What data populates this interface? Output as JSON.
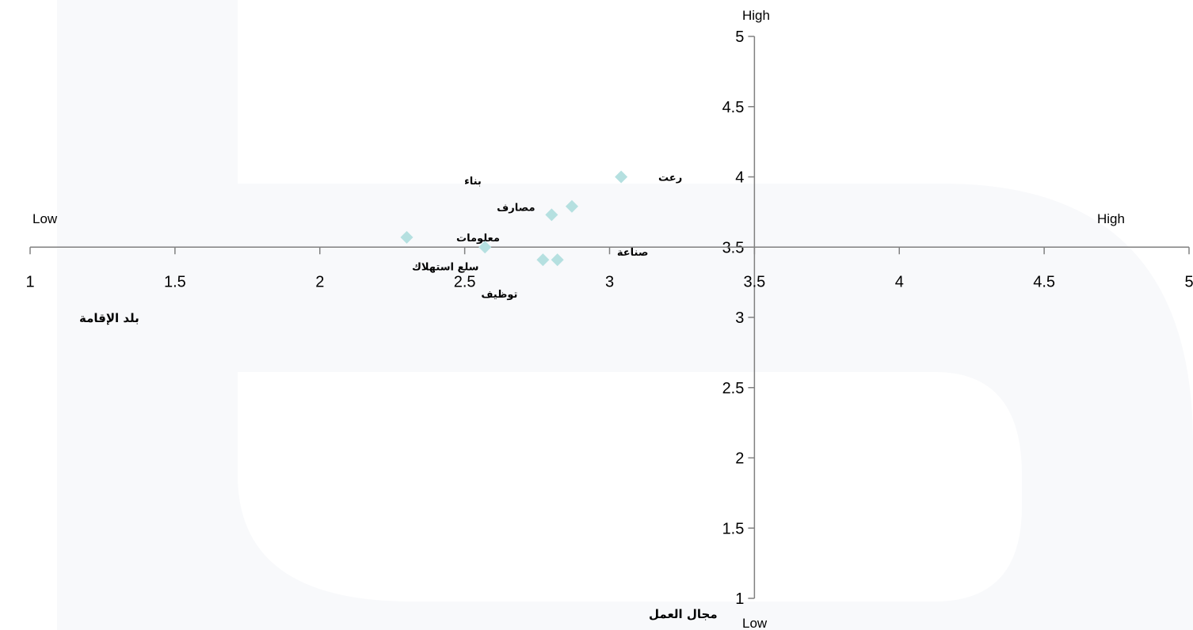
{
  "colors": {
    "background": "#ffffff",
    "watermark": "#f8f9fb",
    "axis": "#808080",
    "marker": "#b5e0e0"
  },
  "chart_data": {
    "type": "scatter",
    "xlabel": "بلد الإقامة",
    "ylabel": "مجال العمل",
    "xlim": [
      1,
      5
    ],
    "ylim": [
      1,
      5
    ],
    "x_ticks": [
      "1",
      "1.5",
      "2",
      "2.5",
      "3",
      "3.5",
      "4",
      "4.5",
      "5"
    ],
    "y_ticks": [
      "1",
      "1.5",
      "2",
      "2.5",
      "3",
      "3.5",
      "4",
      "4.5",
      "5"
    ],
    "axis_crossing": {
      "x": 3.5,
      "y": 3.5
    },
    "x_axis_ends": {
      "low": "Low",
      "high": "High"
    },
    "y_axis_ends": {
      "low": "Low",
      "high": "High"
    },
    "grid": false,
    "marker": "diamond",
    "points": [
      {
        "x": 3.04,
        "y": 4.0,
        "label": "رعت"
      },
      {
        "x": 2.87,
        "y": 3.79,
        "label": "بناء"
      },
      {
        "x": 2.8,
        "y": 3.73,
        "label": "مصارف"
      },
      {
        "x": 2.3,
        "y": 3.57,
        "label": "معلومات"
      },
      {
        "x": 2.57,
        "y": 3.5,
        "label": "سلع استهلاك"
      },
      {
        "x": 2.82,
        "y": 3.41,
        "label": "صناعة"
      },
      {
        "x": 2.77,
        "y": 3.41,
        "label": "توظيف"
      }
    ]
  }
}
